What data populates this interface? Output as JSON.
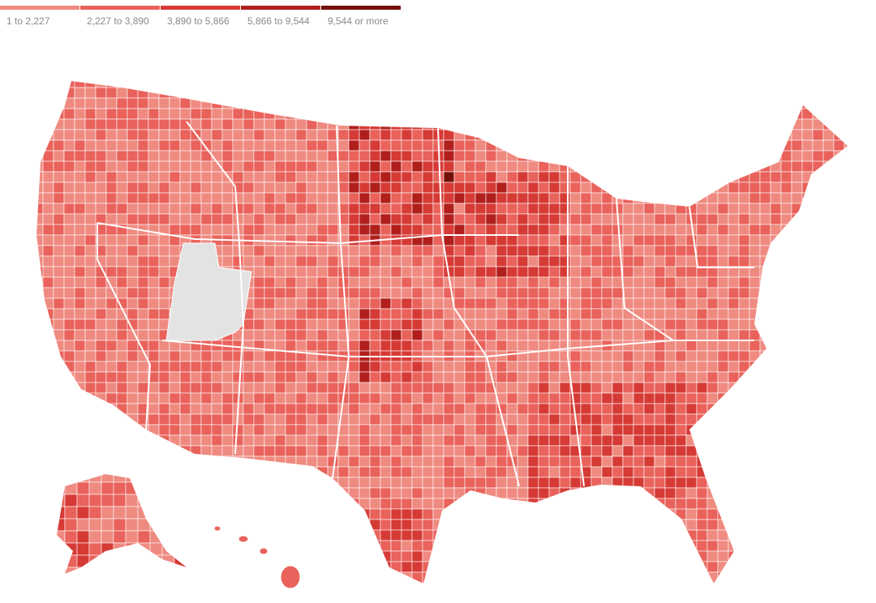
{
  "legend": {
    "items": [
      {
        "label": "1 to 2,227",
        "color": "#ef8a80"
      },
      {
        "label": "2,227 to 3,890",
        "color": "#e9625b"
      },
      {
        "label": "3,890 to 5,866",
        "color": "#d63a35"
      },
      {
        "label": "5,866 to 9,544",
        "color": "#b01f1c"
      },
      {
        "label": "9,544 or more",
        "color": "#751009"
      }
    ]
  }
}
